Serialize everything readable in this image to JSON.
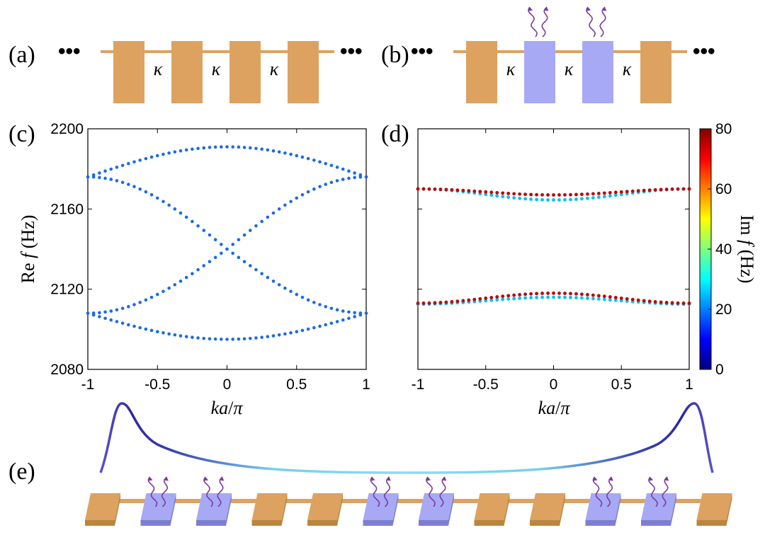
{
  "panel_labels": {
    "a": "(a)",
    "b": "(b)",
    "c": "(c)",
    "d": "(d)",
    "e": "(e)"
  },
  "ellipsis": "•••",
  "schematic_a": {
    "coupling_label": "κ",
    "resonators": [
      "lossless",
      "lossless",
      "lossless",
      "lossless"
    ]
  },
  "schematic_b": {
    "coupling_label": "κ",
    "resonators": [
      "lossless",
      "lossy",
      "lossy",
      "lossless"
    ]
  },
  "schematic_e": {
    "resonators": [
      "lossless",
      "lossy",
      "lossy",
      "lossless",
      "lossless",
      "lossy",
      "lossy",
      "lossless",
      "lossless",
      "lossy",
      "lossy",
      "lossless"
    ]
  },
  "colors": {
    "lossless": "#DDA25F",
    "lossless_side": "#B98640",
    "lossy": "#A7A9F5",
    "lossy_side": "#7C7FD0",
    "rod": "#DDA25F",
    "arrow": "#7A3C9E",
    "band_c": "#1C6AE8"
  },
  "colorbar": {
    "label_main": "Im",
    "label_var": "f",
    "label_unit": " (Hz)",
    "ticks": [
      "0",
      "20",
      "40",
      "60",
      "80"
    ],
    "range": [
      0,
      80
    ],
    "colormap": "jet"
  },
  "chart_data": [
    {
      "type": "scatter",
      "panel": "c",
      "xlabel_parts": [
        "ka",
        "/",
        "π"
      ],
      "ylabel_parts": [
        "Re ",
        "f",
        " (Hz)"
      ],
      "xlim": [
        -1,
        1
      ],
      "ylim": [
        2080,
        2200
      ],
      "xticks": [
        "-1",
        "-0.5",
        "0",
        "0.5",
        "1"
      ],
      "yticks": [
        "2080",
        "2120",
        "2160",
        "2200"
      ],
      "grid": false,
      "bands": [
        {
          "model": "cosine",
          "center": 2141,
          "amplitude": 50,
          "period_multiplier": 0.5,
          "description_values": {
            "at_0": 2191,
            "at_pm1": 2176
          }
        },
        {
          "model": "cosine",
          "center": 2141,
          "amplitude": -46,
          "period_multiplier": 0.5,
          "description_values": {
            "at_0": 2095,
            "at_pm1": 2108
          }
        },
        {
          "model": "cosine_shift",
          "center": 2141,
          "amplitude": 35,
          "description_values": {
            "at_0": 2140,
            "at_pm1": 2176
          }
        },
        {
          "model": "cosine_shift",
          "center": 2141,
          "amplitude": -33,
          "description_values": {
            "at_0": 2140,
            "at_pm1": 2108
          }
        }
      ],
      "points_per_band": 49,
      "series_color": "#1C6AE8"
    },
    {
      "type": "scatter",
      "panel": "d",
      "xlabel_parts": [
        "ka",
        "/",
        "π"
      ],
      "xlim": [
        -1,
        1
      ],
      "ylim": [
        2080,
        2200
      ],
      "xticks": [
        "-1",
        "-0.5",
        "0",
        "0.5",
        "1"
      ],
      "yticks": [],
      "grid": false,
      "series": [
        {
          "name": "upper-lossy",
          "re_at_0": 2167,
          "re_at_pm1": 2170,
          "im": 75
        },
        {
          "name": "upper-lossless",
          "re_at_0": 2164.5,
          "re_at_pm1": 2170,
          "im": 25
        },
        {
          "name": "lower-lossy",
          "re_at_0": 2118,
          "re_at_pm1": 2113,
          "im": 75
        },
        {
          "name": "lower-lossless",
          "re_at_0": 2116,
          "re_at_pm1": 2112.5,
          "im": 25
        }
      ],
      "points_per_band": 49
    }
  ]
}
